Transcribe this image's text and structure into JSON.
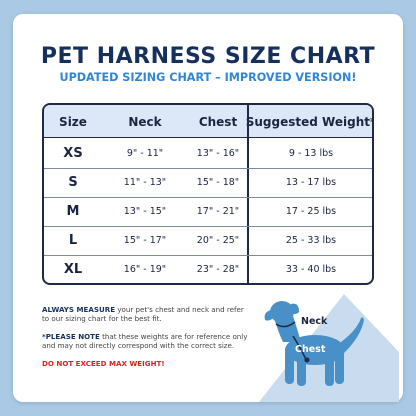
{
  "header": {
    "title": "PET HARNESS SIZE CHART",
    "subtitle": "UPDATED SIZING CHART – IMPROVED VERSION!"
  },
  "table": {
    "columns": [
      "Size",
      "Neck",
      "Chest",
      "Suggested Weight*"
    ],
    "rows": [
      {
        "size": "XS",
        "neck": "9\" - 11\"",
        "chest": "13\" - 16\"",
        "weight": "9 - 13 lbs"
      },
      {
        "size": "S",
        "neck": "11\" - 13\"",
        "chest": "15\" - 18\"",
        "weight": "13 - 17 lbs"
      },
      {
        "size": "M",
        "neck": "13\" - 15\"",
        "chest": "17\" - 21\"",
        "weight": "17 - 25 lbs"
      },
      {
        "size": "L",
        "neck": "15\" - 17\"",
        "chest": "20\" - 25\"",
        "weight": "25 - 33 lbs"
      },
      {
        "size": "XL",
        "neck": "16\" - 19\"",
        "chest": "23\" - 28\"",
        "weight": "33 - 40 lbs"
      }
    ]
  },
  "notes": {
    "measure_bold": "ALWAYS MEASURE",
    "measure_text": " your pet's chest and neck and refer to our sizing chart for the best fit.",
    "note_bold": "*PLEASE NOTE",
    "note_text": " that these weights are for reference only and may not directly correspond with the correct size.",
    "warning": "DO NOT EXCEED MAX WEIGHT!"
  },
  "illustration": {
    "neck_label": "Neck",
    "chest_label": "Chest",
    "dog_color": "#4a90c8",
    "triangle_color": "#c9dcef"
  },
  "colors": {
    "background": "#a9c9e4",
    "title": "#16305c",
    "subtitle": "#2f86d3",
    "header_row": "#dce8f7",
    "warning": "#d9261c"
  }
}
